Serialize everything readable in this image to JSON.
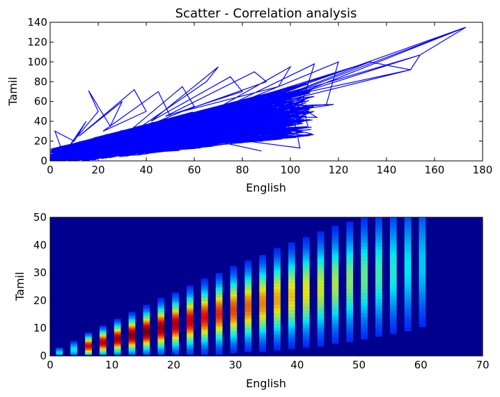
{
  "chart_data": [
    {
      "type": "line",
      "title": "Scatter - Correlation analysis",
      "xlabel": "English",
      "ylabel": "Tamil",
      "xlim": [
        0,
        180
      ],
      "ylim": [
        0,
        140
      ],
      "xticks": [
        0,
        20,
        40,
        60,
        80,
        100,
        120,
        140,
        160,
        180
      ],
      "yticks": [
        0,
        20,
        40,
        60,
        80,
        100,
        120,
        140
      ],
      "grid": false,
      "color": "#0000ff",
      "series": [
        {
          "points_description_free": true,
          "x": [
            0,
            5,
            2,
            10,
            15,
            8,
            20,
            16,
            25,
            30,
            12,
            35,
            40,
            22,
            45,
            50,
            28,
            55,
            60,
            35,
            65,
            70,
            42,
            75,
            80,
            48,
            85,
            90,
            55,
            95,
            100,
            60,
            105,
            110,
            65,
            115,
            120,
            70,
            133,
            150,
            154,
            173
          ],
          "y": [
            0,
            10,
            30,
            20,
            40,
            15,
            50,
            71,
            35,
            60,
            25,
            72,
            50,
            30,
            70,
            45,
            20,
            75,
            55,
            30,
            80,
            95,
            40,
            85,
            70,
            45,
            90,
            80,
            50,
            75,
            95,
            40,
            60,
            98,
            45,
            57,
            100,
            50,
            100,
            92,
            107,
            135
          ]
        }
      ]
    },
    {
      "type": "heatmap",
      "xlabel": "English",
      "ylabel": "Tamil",
      "xlim": [
        0,
        70
      ],
      "ylim": [
        0,
        50
      ],
      "xticks": [
        0,
        10,
        20,
        30,
        40,
        50,
        60,
        70
      ],
      "yticks": [
        0,
        10,
        20,
        30,
        40,
        50
      ],
      "colormap": "jet",
      "background": "#00008f"
    }
  ]
}
